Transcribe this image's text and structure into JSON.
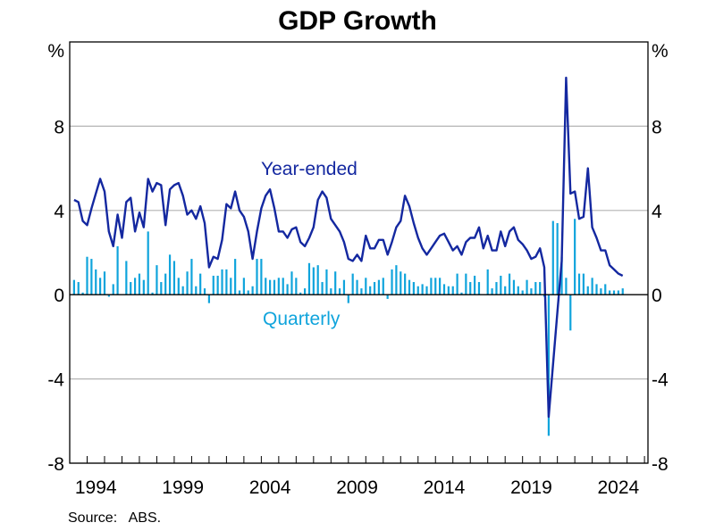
{
  "chart_data": {
    "type": "bar+line",
    "title": "GDP Growth",
    "ylabel_left": "%",
    "ylabel_right": "%",
    "source": "Source:   ABS.",
    "ylim": [
      -8,
      12
    ],
    "xlim": [
      1993,
      2026.2
    ],
    "yticks": [
      8,
      4,
      0,
      -4,
      -8
    ],
    "ytick_labels": [
      "8",
      "4",
      "0",
      "-4",
      "-8"
    ],
    "xtick_labels": [
      "1994",
      "1999",
      "2004",
      "2009",
      "2014",
      "2019",
      "2024"
    ],
    "grid": true,
    "colors": {
      "year_ended": "#1428a0",
      "quarterly": "#10a4dc",
      "grid": "#b4b4b4",
      "zero": "#000000"
    },
    "x": [
      "1993-Q1",
      "1993-Q2",
      "1993-Q3",
      "1993-Q4",
      "1994-Q1",
      "1994-Q2",
      "1994-Q3",
      "1994-Q4",
      "1995-Q1",
      "1995-Q2",
      "1995-Q3",
      "1995-Q4",
      "1996-Q1",
      "1996-Q2",
      "1996-Q3",
      "1996-Q4",
      "1997-Q1",
      "1997-Q2",
      "1997-Q3",
      "1997-Q4",
      "1998-Q1",
      "1998-Q2",
      "1998-Q3",
      "1998-Q4",
      "1999-Q1",
      "1999-Q2",
      "1999-Q3",
      "1999-Q4",
      "2000-Q1",
      "2000-Q2",
      "2000-Q3",
      "2000-Q4",
      "2001-Q1",
      "2001-Q2",
      "2001-Q3",
      "2001-Q4",
      "2002-Q1",
      "2002-Q2",
      "2002-Q3",
      "2002-Q4",
      "2003-Q1",
      "2003-Q2",
      "2003-Q3",
      "2003-Q4",
      "2004-Q1",
      "2004-Q2",
      "2004-Q3",
      "2004-Q4",
      "2005-Q1",
      "2005-Q2",
      "2005-Q3",
      "2005-Q4",
      "2006-Q1",
      "2006-Q2",
      "2006-Q3",
      "2006-Q4",
      "2007-Q1",
      "2007-Q2",
      "2007-Q3",
      "2007-Q4",
      "2008-Q1",
      "2008-Q2",
      "2008-Q3",
      "2008-Q4",
      "2009-Q1",
      "2009-Q2",
      "2009-Q3",
      "2009-Q4",
      "2010-Q1",
      "2010-Q2",
      "2010-Q3",
      "2010-Q4",
      "2011-Q1",
      "2011-Q2",
      "2011-Q3",
      "2011-Q4",
      "2012-Q1",
      "2012-Q2",
      "2012-Q3",
      "2012-Q4",
      "2013-Q1",
      "2013-Q2",
      "2013-Q3",
      "2013-Q4",
      "2014-Q1",
      "2014-Q2",
      "2014-Q3",
      "2014-Q4",
      "2015-Q1",
      "2015-Q2",
      "2015-Q3",
      "2015-Q4",
      "2016-Q1",
      "2016-Q2",
      "2016-Q3",
      "2016-Q4",
      "2017-Q1",
      "2017-Q2",
      "2017-Q3",
      "2017-Q4",
      "2018-Q1",
      "2018-Q2",
      "2018-Q3",
      "2018-Q4",
      "2019-Q1",
      "2019-Q2",
      "2019-Q3",
      "2019-Q4",
      "2020-Q1",
      "2020-Q2",
      "2020-Q3",
      "2020-Q4",
      "2021-Q1",
      "2021-Q2",
      "2021-Q3",
      "2021-Q4",
      "2022-Q1",
      "2022-Q2",
      "2022-Q3",
      "2022-Q4",
      "2023-Q1",
      "2023-Q2",
      "2023-Q3",
      "2023-Q4",
      "2024-Q1",
      "2024-Q2",
      "2024-Q3"
    ],
    "series": [
      {
        "name": "Year-ended",
        "type": "line",
        "values": [
          4.5,
          4.4,
          3.5,
          3.3,
          4.1,
          4.8,
          5.5,
          4.9,
          3.0,
          2.3,
          3.8,
          2.7,
          4.4,
          4.6,
          3.0,
          3.9,
          3.2,
          5.5,
          4.9,
          5.3,
          5.2,
          3.3,
          5.0,
          5.2,
          5.3,
          4.7,
          3.8,
          4.0,
          3.6,
          4.2,
          3.4,
          1.3,
          1.8,
          1.7,
          2.6,
          4.3,
          4.1,
          4.9,
          4.0,
          3.7,
          3.0,
          1.7,
          3.0,
          4.1,
          4.7,
          5.0,
          4.1,
          3.0,
          3.0,
          2.7,
          3.1,
          3.2,
          2.5,
          2.3,
          2.7,
          3.2,
          4.5,
          4.9,
          4.6,
          3.6,
          3.3,
          3.0,
          2.5,
          1.7,
          1.6,
          1.9,
          1.6,
          2.8,
          2.2,
          2.2,
          2.6,
          2.6,
          1.9,
          2.5,
          3.2,
          3.5,
          4.7,
          4.2,
          3.4,
          2.7,
          2.2,
          1.9,
          2.2,
          2.5,
          2.8,
          2.9,
          2.5,
          2.1,
          2.3,
          1.9,
          2.5,
          2.7,
          2.7,
          3.2,
          2.2,
          2.8,
          2.1,
          2.1,
          3.0,
          2.3,
          3.0,
          3.2,
          2.6,
          2.4,
          2.1,
          1.7,
          1.8,
          2.2,
          1.3,
          -5.8,
          -3.3,
          -0.8,
          1.6,
          10.3,
          4.8,
          4.9,
          3.6,
          3.7,
          6.0,
          3.2,
          2.7,
          2.1,
          2.1,
          1.4,
          1.2,
          1.0,
          0.9
        ]
      },
      {
        "name": "Quarterly",
        "type": "bar",
        "values": [
          0.7,
          0.6,
          0.1,
          1.8,
          1.7,
          1.2,
          0.8,
          1.1,
          -0.1,
          0.5,
          2.3,
          0.0,
          1.6,
          0.6,
          0.8,
          1.0,
          0.7,
          3.0,
          0.1,
          1.4,
          0.6,
          1.0,
          1.9,
          1.6,
          0.8,
          0.4,
          1.1,
          1.7,
          0.4,
          1.0,
          0.3,
          -0.4,
          0.9,
          0.9,
          1.2,
          1.2,
          0.8,
          1.7,
          0.2,
          0.8,
          0.2,
          0.4,
          1.7,
          1.7,
          0.8,
          0.7,
          0.7,
          0.8,
          0.8,
          0.5,
          1.1,
          0.8,
          0.1,
          0.3,
          1.5,
          1.3,
          1.4,
          0.6,
          1.2,
          0.3,
          1.1,
          0.3,
          0.7,
          -0.4,
          1.0,
          0.7,
          0.3,
          0.8,
          0.4,
          0.6,
          0.7,
          0.8,
          -0.2,
          1.2,
          1.4,
          1.1,
          1.0,
          0.7,
          0.6,
          0.4,
          0.5,
          0.4,
          0.8,
          0.8,
          0.8,
          0.5,
          0.4,
          0.4,
          1.0,
          0.1,
          1.0,
          0.6,
          0.9,
          0.6,
          0.0,
          1.2,
          0.3,
          0.6,
          0.9,
          0.4,
          1.0,
          0.7,
          0.4,
          0.2,
          0.7,
          0.3,
          0.6,
          0.6,
          -0.1,
          -6.7,
          3.5,
          3.4,
          1.8,
          0.8,
          -1.7,
          3.6,
          1.0,
          1.0,
          0.4,
          0.8,
          0.5,
          0.3,
          0.5,
          0.2,
          0.2,
          0.2,
          0.3
        ]
      }
    ]
  }
}
